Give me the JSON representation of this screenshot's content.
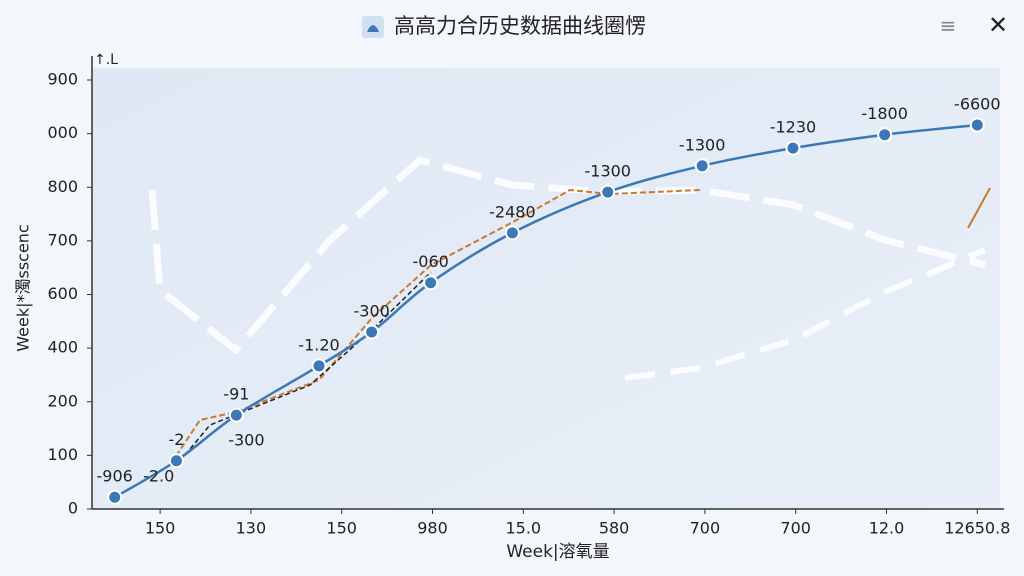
{
  "chart_data": {
    "type": "line",
    "title": "高高力合历史数据曲线圈愣",
    "x_label": "Week|溶氧量",
    "y_label": "Week|*濁sscenc",
    "y_unit_label": "↑.L",
    "xlim": [
      -0.75,
      9.25
    ],
    "xticks": [
      {
        "value": 0,
        "label": "150"
      },
      {
        "value": 1,
        "label": "130"
      },
      {
        "value": 2,
        "label": "150"
      },
      {
        "value": 3,
        "label": "980"
      },
      {
        "value": 4,
        "label": "15.0"
      },
      {
        "value": 5,
        "label": "580"
      },
      {
        "value": 6,
        "label": "700"
      },
      {
        "value": 7,
        "label": "700"
      },
      {
        "value": 8,
        "label": "12.0"
      },
      {
        "value": 9,
        "label": "12650.8"
      }
    ],
    "ylim": [
      0,
      8
    ],
    "yticks": [
      {
        "value": 0,
        "label": "0"
      },
      {
        "value": 1,
        "label": "100"
      },
      {
        "value": 2,
        "label": "200"
      },
      {
        "value": 3,
        "label": "400"
      },
      {
        "value": 4,
        "label": "600"
      },
      {
        "value": 5,
        "label": "700"
      },
      {
        "value": 6,
        "label": "800"
      },
      {
        "value": 7,
        "label": "000"
      },
      {
        "value": 8,
        "label": "900"
      }
    ],
    "series": [
      {
        "color": "#3b78b5",
        "x": [
          -0.5,
          0.18,
          0.84,
          1.75,
          2.33,
          2.98,
          3.88,
          4.93,
          5.97,
          6.97,
          7.98,
          9.0
        ],
        "values": [
          0.22,
          0.9,
          1.75,
          2.67,
          3.3,
          4.22,
          5.15,
          5.91,
          6.4,
          6.73,
          6.98,
          7.16
        ],
        "point_labels": [
          "-906",
          "-2",
          "-91",
          "-1.20",
          "-300",
          "-060",
          "-2480",
          "-1300",
          "-1300",
          "-1230",
          "-1800",
          "-6600"
        ]
      }
    ],
    "annotations": [
      "-2.0",
      "-300"
    ]
  }
}
